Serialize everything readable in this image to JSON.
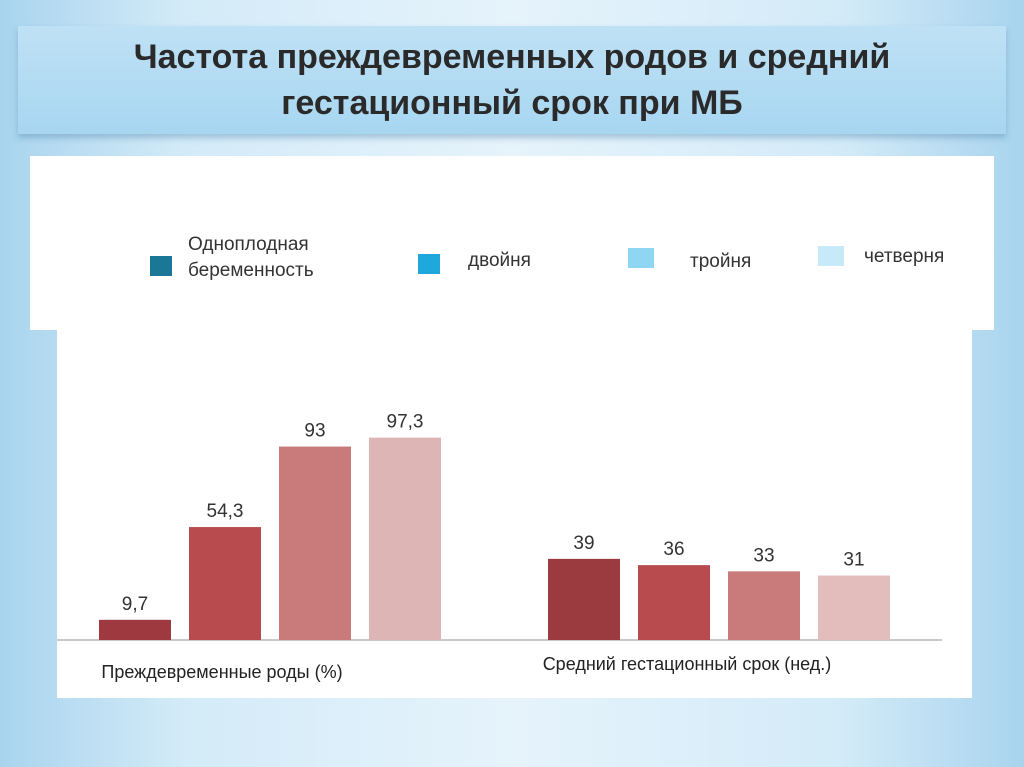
{
  "title": "Частота преждевременных родов и средний гестационный срок при МБ",
  "legend": [
    {
      "label": "Одноплодная беременность",
      "color": "#1a7896"
    },
    {
      "label": "двойня",
      "color": "#1fa8dc"
    },
    {
      "label": "тройня",
      "color": "#8fd6f2"
    },
    {
      "label": "четверня",
      "color": "#c6eaf7"
    }
  ],
  "chart_data": {
    "type": "bar",
    "groups": [
      {
        "label": "Преждевременные роды (%)",
        "values": [
          9.7,
          54.3,
          93,
          97.3
        ],
        "value_labels": [
          "9,7",
          "54,3",
          "93",
          "97,3"
        ],
        "colors": [
          "#9e3a3f",
          "#b84b4d",
          "#c97a7a",
          "#ddb5b5"
        ]
      },
      {
        "label": "Средний гестационный срок (нед.)",
        "values": [
          39,
          36,
          33,
          31
        ],
        "value_labels": [
          "39",
          "36",
          "33",
          "31"
        ],
        "colors": [
          "#9c3b3f",
          "#b84b4d",
          "#c97a7a",
          "#e3bcbc"
        ]
      }
    ],
    "ylim": [
      0,
      100
    ],
    "grid": false
  }
}
